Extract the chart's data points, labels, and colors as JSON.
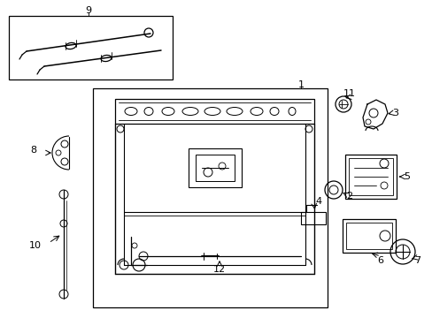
{
  "background_color": "#ffffff",
  "line_color": "#000000",
  "gray_color": "#aaaaaa"
}
